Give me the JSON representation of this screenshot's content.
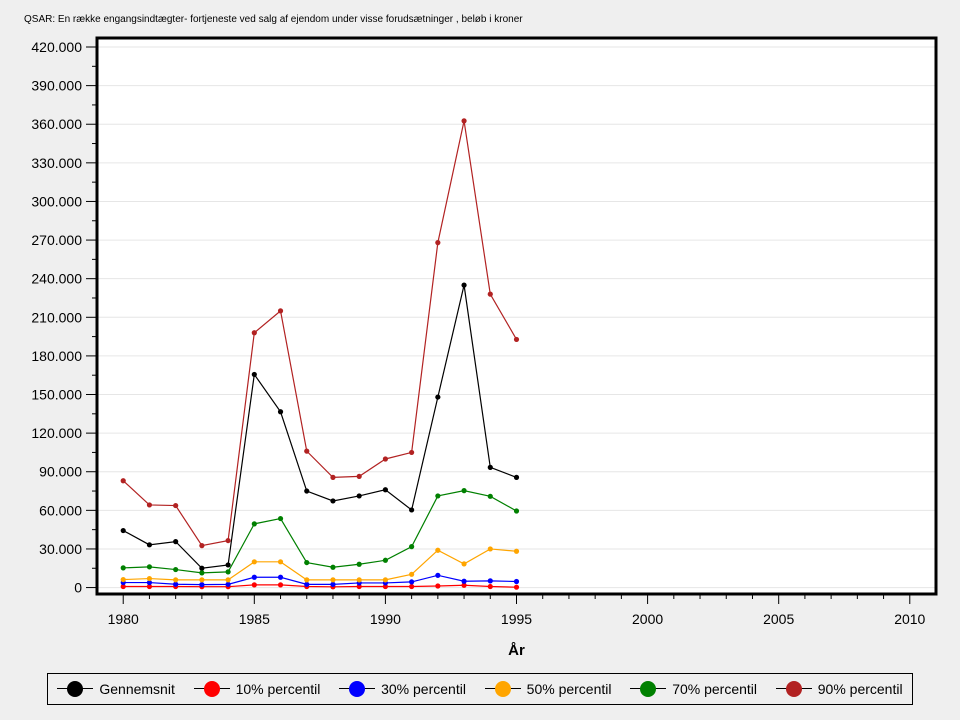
{
  "chart_data": {
    "type": "line",
    "title": "QSAR: En række engangsindtægter- fortjeneste ved salg af ejendom  under visse forudsætninger , beløb i kroner",
    "xlabel": "År",
    "ylabel": "",
    "xlim": [
      1979,
      2011
    ],
    "ylim": [
      -5000,
      427000
    ],
    "x_ticks": [
      1980,
      1985,
      1990,
      1995,
      2000,
      2005,
      2010
    ],
    "y_ticks": [
      0,
      30000,
      60000,
      90000,
      120000,
      150000,
      180000,
      210000,
      240000,
      270000,
      300000,
      330000,
      360000,
      390000,
      420000
    ],
    "y_tick_labels": [
      "0",
      "30.000",
      "60.000",
      "90.000",
      "120.000",
      "150.000",
      "180.000",
      "210.000",
      "240.000",
      "270.000",
      "300.000",
      "330.000",
      "360.000",
      "390.000",
      "420.000"
    ],
    "grid": true,
    "legend_position": "bottom",
    "x": [
      1980,
      1981,
      1982,
      1983,
      1984,
      1985,
      1986,
      1987,
      1988,
      1989,
      1990,
      1991,
      1992,
      1993,
      1994,
      1995
    ],
    "series": [
      {
        "name": "Gennemsnit",
        "color": "#000000",
        "values": [
          44300,
          33200,
          35700,
          15000,
          17600,
          165600,
          136600,
          75000,
          67300,
          71200,
          76000,
          60300,
          148000,
          235000,
          93400,
          85600
        ]
      },
      {
        "name": "10% percentil",
        "color": "#ff0000",
        "values": [
          800,
          800,
          800,
          700,
          700,
          2100,
          2100,
          800,
          600,
          800,
          800,
          800,
          1200,
          1800,
          800,
          300
        ]
      },
      {
        "name": "30% percentil",
        "color": "#0000ff",
        "values": [
          3900,
          3900,
          2600,
          2300,
          2500,
          8000,
          8000,
          2500,
          2500,
          3600,
          3600,
          4400,
          9500,
          4900,
          5200,
          4700
        ]
      },
      {
        "name": "50% percentil",
        "color": "#ffa500",
        "values": [
          6200,
          7000,
          6000,
          6000,
          6000,
          20000,
          20000,
          6000,
          6000,
          6000,
          6000,
          10300,
          29000,
          18400,
          30000,
          28200
        ]
      },
      {
        "name": "70% percentil",
        "color": "#008000",
        "values": [
          15300,
          16100,
          14000,
          11400,
          12200,
          49500,
          53600,
          19400,
          15800,
          18100,
          21200,
          31800,
          71200,
          75300,
          70900,
          59500
        ]
      },
      {
        "name": "90% percentil",
        "color": "#b22222",
        "values": [
          83000,
          64200,
          63700,
          32600,
          36500,
          198000,
          215000,
          106000,
          85600,
          86400,
          99900,
          105000,
          268000,
          362600,
          228000,
          192800
        ]
      }
    ]
  }
}
